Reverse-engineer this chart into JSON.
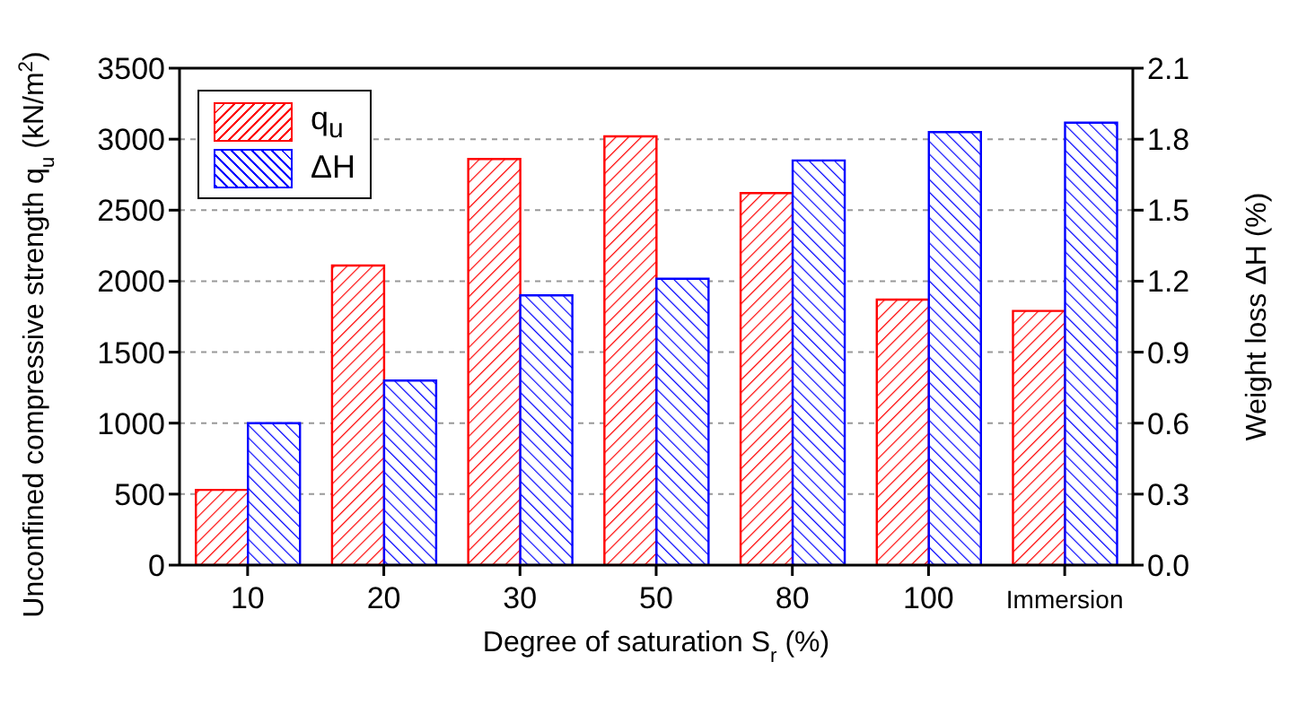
{
  "chart_data": {
    "type": "bar",
    "categories": [
      "10",
      "20",
      "30",
      "50",
      "80",
      "100",
      "Immersion"
    ],
    "xlabel": "Degree of saturation S$_{r}$ (%)",
    "ylabel": "Unconfined compressive strength q$_{u}$ (kN/m$^{2}$)",
    "y2label": "Weight loss  ΔH (%)",
    "series": [
      {
        "name": "q$_{u}$",
        "color": "#ff0000",
        "values": [
          530,
          2110,
          2860,
          3020,
          2620,
          1870,
          1790
        ]
      },
      {
        "name": "ΔH",
        "color": "#0000ff",
        "axis": "y2",
        "values": [
          0.6,
          0.78,
          1.14,
          1.21,
          1.71,
          1.83,
          1.87
        ]
      }
    ],
    "ylim": [
      0,
      3500
    ],
    "yticks": [
      0,
      500,
      1000,
      1500,
      2000,
      2500,
      3000,
      3500
    ],
    "y2lim": [
      0,
      2.1
    ],
    "y2ticks": [
      {
        "value": 0,
        "label": "0.0"
      },
      {
        "value": 0.3,
        "label": "0.3"
      },
      {
        "value": 0.6,
        "label": "0.6"
      },
      {
        "value": 0.9,
        "label": "0.9"
      },
      {
        "value": 1.2,
        "label": "1.2"
      },
      {
        "value": 1.5,
        "label": "1.5"
      },
      {
        "value": 1.8,
        "label": "1.8"
      },
      {
        "value": 2.1,
        "label": "2.1"
      }
    ],
    "grid": "y",
    "legend": "top left"
  }
}
